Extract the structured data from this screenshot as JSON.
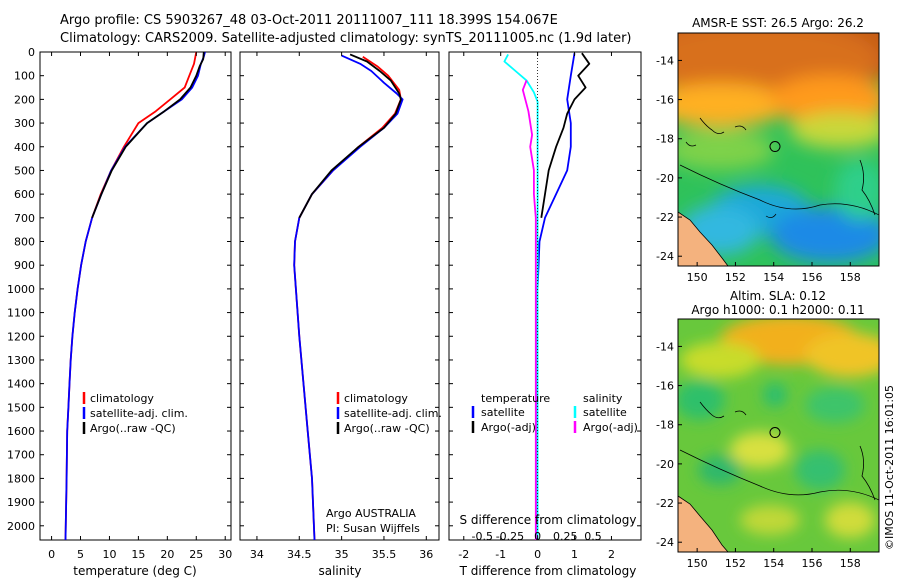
{
  "title": {
    "line1": "Argo profile: CS 5903267_48 03-Oct-2011 20111007_111 18.399S 154.067E",
    "line2": "Climatology: CARS2009. Satellite-adjusted climatology: synTS_20111005.nc (1.9d later)"
  },
  "colors": {
    "climatology": "#ff0000",
    "satellite": "#0000ff",
    "argo": "#000000",
    "salinity_sat": "#00ffff",
    "salinity_argo": "#ff00ff"
  },
  "depth_ticks": [
    0,
    100,
    200,
    300,
    400,
    500,
    600,
    700,
    800,
    900,
    1000,
    1100,
    1200,
    1300,
    1400,
    1500,
    1600,
    1700,
    1800,
    1900,
    2000
  ],
  "chart_data": [
    {
      "type": "line",
      "name": "temperature",
      "xlabel": "temperature (deg C)",
      "xlim": [
        -2,
        31
      ],
      "ylim": [
        2060,
        0
      ],
      "xticks": [
        0,
        5,
        10,
        15,
        20,
        25,
        30
      ],
      "legend": [
        "climatology",
        "satellite-adj. clim.",
        "Argo(..raw -QC)"
      ],
      "series": [
        {
          "name": "climatology",
          "color": "#ff0000",
          "points": [
            [
              25.0,
              0
            ],
            [
              24.6,
              50
            ],
            [
              23.8,
              100
            ],
            [
              23.0,
              150
            ],
            [
              20.5,
              200
            ],
            [
              18.0,
              250
            ],
            [
              15.0,
              300
            ],
            [
              12.5,
              400
            ],
            [
              10.3,
              500
            ],
            [
              8.5,
              600
            ],
            [
              7.0,
              700
            ],
            [
              5.9,
              800
            ],
            [
              5.1,
              900
            ],
            [
              4.5,
              1000
            ],
            [
              4.0,
              1100
            ],
            [
              3.6,
              1200
            ],
            [
              3.3,
              1300
            ],
            [
              3.1,
              1400
            ],
            [
              2.9,
              1500
            ],
            [
              2.7,
              1600
            ],
            [
              2.6,
              1800
            ],
            [
              2.4,
              2060
            ]
          ]
        },
        {
          "name": "satellite-adj. clim.",
          "color": "#0000ff",
          "points": [
            [
              26.5,
              0
            ],
            [
              26.3,
              20
            ],
            [
              25.8,
              50
            ],
            [
              25.3,
              100
            ],
            [
              24.3,
              150
            ],
            [
              22.5,
              200
            ],
            [
              19.5,
              250
            ],
            [
              16.5,
              300
            ],
            [
              12.7,
              400
            ],
            [
              10.3,
              500
            ],
            [
              8.6,
              600
            ],
            [
              7.0,
              700
            ],
            [
              5.9,
              800
            ],
            [
              5.1,
              900
            ],
            [
              4.5,
              1000
            ],
            [
              4.0,
              1100
            ],
            [
              3.6,
              1200
            ],
            [
              3.3,
              1300
            ],
            [
              3.1,
              1400
            ],
            [
              2.9,
              1500
            ],
            [
              2.7,
              1600
            ],
            [
              2.6,
              1800
            ],
            [
              2.4,
              2060
            ]
          ]
        },
        {
          "name": "Argo(..raw -QC)",
          "color": "#000000",
          "points": [
            [
              26.3,
              0
            ],
            [
              26.2,
              30
            ],
            [
              25.6,
              60
            ],
            [
              25.0,
              100
            ],
            [
              24.0,
              150
            ],
            [
              22.2,
              200
            ],
            [
              19.5,
              250
            ],
            [
              16.5,
              300
            ],
            [
              12.8,
              400
            ],
            [
              10.4,
              500
            ],
            [
              8.6,
              600
            ],
            [
              7.0,
              700
            ]
          ]
        }
      ]
    },
    {
      "type": "line",
      "name": "salinity",
      "xlabel": "salinity",
      "xlim": [
        33.8,
        36.15
      ],
      "ylim": [
        2060,
        0
      ],
      "xticks": [
        34,
        34.5,
        35,
        35.5,
        36
      ],
      "legend": [
        "climatology",
        "satellite-adj. clim.",
        "Argo(..raw -QC)"
      ],
      "annotation": [
        "Argo AUSTRALIA",
        "PI: Susan Wijffels"
      ],
      "series": [
        {
          "name": "climatology",
          "color": "#ff0000",
          "points": [
            [
              35.25,
              20
            ],
            [
              35.42,
              60
            ],
            [
              35.55,
              100
            ],
            [
              35.68,
              160
            ],
            [
              35.7,
              200
            ],
            [
              35.63,
              260
            ],
            [
              35.48,
              320
            ],
            [
              35.2,
              400
            ],
            [
              34.9,
              500
            ],
            [
              34.65,
              600
            ],
            [
              34.5,
              700
            ],
            [
              34.45,
              800
            ],
            [
              34.44,
              900
            ],
            [
              34.46,
              1000
            ],
            [
              34.5,
              1200
            ],
            [
              34.55,
              1400
            ],
            [
              34.6,
              1600
            ],
            [
              34.65,
              1800
            ],
            [
              34.68,
              2060
            ]
          ]
        },
        {
          "name": "satellite-adj. clim.",
          "color": "#0000ff",
          "points": [
            [
              35.0,
              15
            ],
            [
              35.22,
              50
            ],
            [
              35.35,
              80
            ],
            [
              35.5,
              130
            ],
            [
              35.65,
              175
            ],
            [
              35.72,
              200
            ],
            [
              35.66,
              260
            ],
            [
              35.5,
              320
            ],
            [
              35.22,
              400
            ],
            [
              34.9,
              500
            ],
            [
              34.65,
              600
            ],
            [
              34.5,
              700
            ],
            [
              34.45,
              800
            ],
            [
              34.44,
              900
            ],
            [
              34.46,
              1000
            ],
            [
              34.5,
              1200
            ],
            [
              34.55,
              1400
            ],
            [
              34.6,
              1600
            ],
            [
              34.65,
              1800
            ],
            [
              34.68,
              2060
            ]
          ]
        },
        {
          "name": "Argo(..raw -QC)",
          "color": "#000000",
          "points": [
            [
              35.1,
              10
            ],
            [
              35.3,
              40
            ],
            [
              35.45,
              80
            ],
            [
              35.58,
              120
            ],
            [
              35.68,
              175
            ],
            [
              35.7,
              200
            ],
            [
              35.64,
              260
            ],
            [
              35.5,
              320
            ],
            [
              35.2,
              400
            ],
            [
              34.88,
              500
            ],
            [
              34.65,
              600
            ],
            [
              34.5,
              700
            ]
          ]
        }
      ]
    },
    {
      "type": "line",
      "name": "difference",
      "xlabel": "T difference from climatology",
      "xlabel_top": "S difference from climatology",
      "xlim": [
        -2.4,
        2.8
      ],
      "ylim": [
        2060,
        0
      ],
      "xticks": [
        -2,
        -1,
        0,
        1,
        2
      ],
      "xticks_s": [
        {
          "label": "-0.5",
          "v": -1.5
        },
        {
          "label": "-0.25",
          "v": -0.75
        },
        {
          "label": "0",
          "v": 0
        },
        {
          "label": "0.25",
          "v": 0.75
        },
        {
          "label": "0.5",
          "v": 1.5
        }
      ],
      "legend_t": {
        "header": "temperature",
        "items": [
          "satellite",
          "Argo(-adj)"
        ]
      },
      "legend_s": {
        "header": "salinity",
        "items": [
          "satellite",
          "Argo(-adj)"
        ]
      },
      "series": [
        {
          "name": "T satellite",
          "color": "#0000ff",
          "points": [
            [
              1.0,
              5
            ],
            [
              0.9,
              100
            ],
            [
              0.8,
              200
            ],
            [
              0.9,
              300
            ],
            [
              0.9,
              400
            ],
            [
              0.8,
              500
            ],
            [
              0.5,
              600
            ],
            [
              0.2,
              700
            ],
            [
              0.05,
              800
            ],
            [
              0.0,
              1000
            ],
            [
              0.0,
              2060
            ]
          ]
        },
        {
          "name": "T Argo(-adj)",
          "color": "#000000",
          "points": [
            [
              1.2,
              5
            ],
            [
              1.4,
              50
            ],
            [
              1.1,
              100
            ],
            [
              1.3,
              150
            ],
            [
              1.0,
              200
            ],
            [
              0.8,
              260
            ],
            [
              0.7,
              320
            ],
            [
              0.5,
              400
            ],
            [
              0.3,
              500
            ],
            [
              0.2,
              600
            ],
            [
              0.1,
              700
            ]
          ]
        },
        {
          "name": "S satellite",
          "color": "#00ffff",
          "points": [
            [
              -0.8,
              10
            ],
            [
              -0.9,
              40
            ],
            [
              -0.6,
              80
            ],
            [
              -0.3,
              120
            ],
            [
              -0.1,
              170
            ],
            [
              0.0,
              210
            ],
            [
              0.0,
              2060
            ]
          ]
        },
        {
          "name": "S Argo(-adj)",
          "color": "#ff00ff",
          "points": [
            [
              -0.3,
              120
            ],
            [
              -0.4,
              160
            ],
            [
              -0.25,
              250
            ],
            [
              -0.15,
              350
            ],
            [
              -0.2,
              400
            ],
            [
              -0.1,
              500
            ],
            [
              -0.1,
              600
            ],
            [
              -0.05,
              700
            ],
            [
              -0.05,
              900
            ],
            [
              -0.05,
              2060
            ]
          ]
        }
      ]
    },
    {
      "type": "heatmap",
      "name": "sst_map",
      "title": "AMSR-E SST: 26.5 Argo: 26.2",
      "xlim": [
        149,
        159.5
      ],
      "ylim": [
        -24.5,
        -12.6
      ],
      "xticks": [
        150,
        152,
        154,
        156,
        158
      ],
      "yticks": [
        -14,
        -16,
        -18,
        -20,
        -22,
        -24
      ],
      "float_position": [
        154.067,
        -18.399
      ]
    },
    {
      "type": "heatmap",
      "name": "sla_map",
      "title1": "Altim. SLA: 0.12",
      "title2": "Argo h1000: 0.1 h2000: 0.11",
      "xlim": [
        149,
        159.5
      ],
      "ylim": [
        -24.5,
        -12.6
      ],
      "xticks": [
        150,
        152,
        154,
        156,
        158
      ],
      "yticks": [
        -14,
        -16,
        -18,
        -20,
        -22,
        -24
      ],
      "float_position": [
        154.067,
        -18.399
      ]
    }
  ],
  "credit": "©IMOS 11-Oct-2011 16:01:05"
}
